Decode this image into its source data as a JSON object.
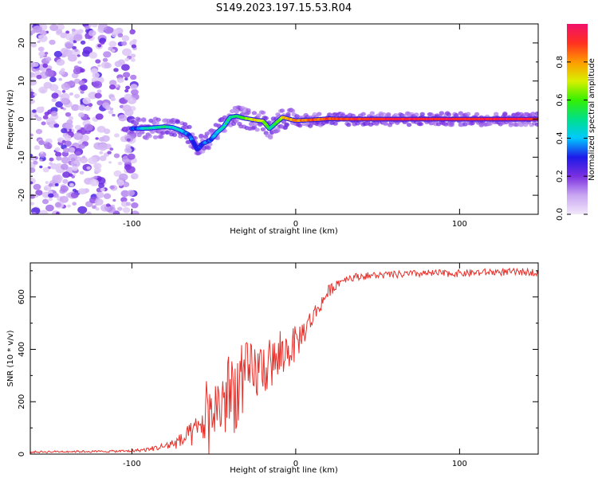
{
  "chart_data": [
    {
      "type": "heatmap",
      "title": "S149.2023.197.15.53.R04",
      "xlabel": "Height of straight line (km)",
      "ylabel": "Frequency (Hz)",
      "xlim": [
        -162,
        148
      ],
      "ylim": [
        -25,
        25
      ],
      "x_ticks": [
        -100,
        0,
        100
      ],
      "y_ticks": [
        -20,
        -10,
        0,
        10,
        20
      ],
      "grid": false,
      "colorbar": {
        "label": "Normalized spectral amplitude",
        "range": [
          0.0,
          1.0
        ],
        "ticks": [
          "0.0",
          "0.2",
          "0.4",
          "0.6",
          "0.8"
        ],
        "colormap": [
          "#f2e8fb",
          "#c9a6f2",
          "#7a2fe0",
          "#1d1ae8",
          "#00c8ff",
          "#00e08a",
          "#34f000",
          "#d8f000",
          "#ff9a00",
          "#ff3020",
          "#f0106a"
        ]
      },
      "ridge": {
        "x": [
          -100,
          -90,
          -80,
          -75,
          -70,
          -65,
          -60,
          -57,
          -52,
          -48,
          -44,
          -40,
          -36,
          -32,
          -28,
          -24,
          -20,
          -16,
          -12,
          -8,
          -4,
          0,
          10,
          20,
          30,
          40,
          60,
          80,
          100,
          120,
          148
        ],
        "frequency": [
          -2.5,
          -2.4,
          -2.0,
          -2.2,
          -3.0,
          -4.2,
          -8.0,
          -6.5,
          -5.5,
          -3.5,
          -2.0,
          0.5,
          0.8,
          0.3,
          0.0,
          -0.3,
          -0.5,
          -2.5,
          -1.0,
          0.5,
          0.0,
          -0.4,
          -0.2,
          0.1,
          0.0,
          0.0,
          0.0,
          0.0,
          0.0,
          0.0,
          0.0
        ],
        "amplitude": [
          0.3,
          0.45,
          0.5,
          0.45,
          0.4,
          0.35,
          0.3,
          0.35,
          0.35,
          0.4,
          0.45,
          0.5,
          0.55,
          0.6,
          0.7,
          0.75,
          0.7,
          0.5,
          0.55,
          0.75,
          0.8,
          0.8,
          0.85,
          0.88,
          0.9,
          0.92,
          0.93,
          0.94,
          0.94,
          0.95,
          0.95
        ]
      },
      "noise_region_x": [
        -162,
        -100
      ]
    },
    {
      "type": "line",
      "xlabel": "Height of straight line (km)",
      "ylabel": "SNR (10 * v/v)",
      "xlim": [
        -162,
        148
      ],
      "ylim": [
        0,
        730
      ],
      "x_ticks": [
        -100,
        0,
        100
      ],
      "y_ticks": [
        0,
        200,
        400,
        600
      ],
      "grid": false,
      "line_color": "#e8312b",
      "x": [
        -162,
        -140,
        -120,
        -100,
        -90,
        -80,
        -70,
        -60,
        -55,
        -50,
        -45,
        -40,
        -35,
        -30,
        -25,
        -20,
        -15,
        -10,
        -5,
        0,
        5,
        10,
        15,
        20,
        25,
        30,
        40,
        60,
        80,
        100,
        120,
        148
      ],
      "y": [
        8,
        10,
        10,
        12,
        18,
        30,
        50,
        90,
        130,
        170,
        200,
        230,
        260,
        290,
        310,
        330,
        345,
        360,
        400,
        420,
        470,
        520,
        570,
        620,
        650,
        670,
        680,
        685,
        690,
        690,
        695,
        695
      ],
      "noise_amplitude": [
        4,
        4,
        4,
        5,
        8,
        15,
        30,
        60,
        90,
        120,
        150,
        170,
        160,
        140,
        120,
        110,
        100,
        90,
        80,
        70,
        50,
        40,
        30,
        25,
        20,
        15,
        14,
        14,
        14,
        14,
        14,
        14
      ]
    }
  ]
}
